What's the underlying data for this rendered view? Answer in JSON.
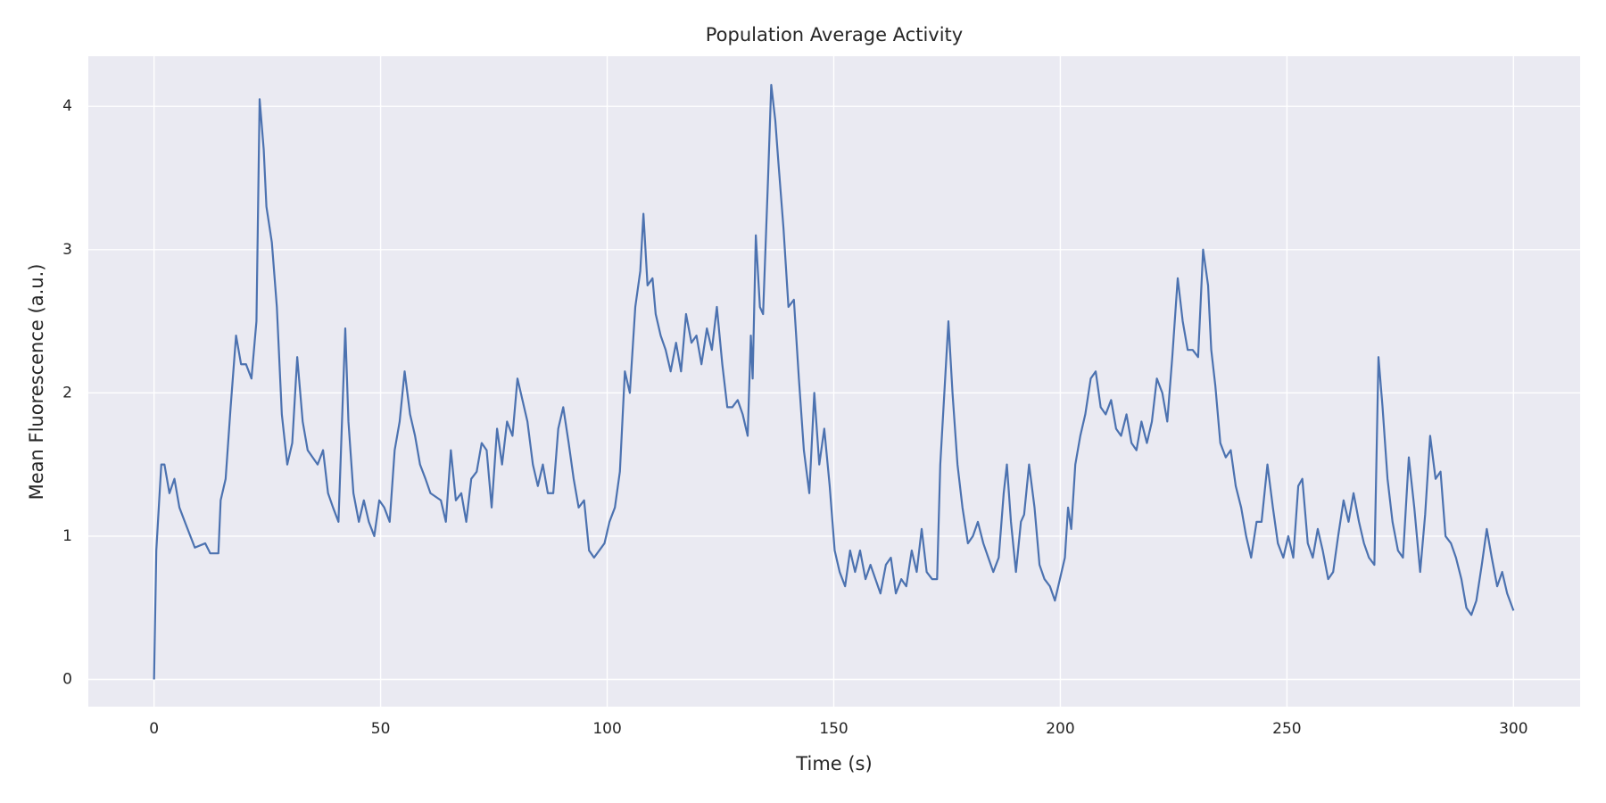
{
  "chart_data": {
    "type": "line",
    "title": "Population Average Activity",
    "x_label": "Time (s)",
    "y_label": "Mean Fluorescence (a.u.)",
    "x": [
      0,
      0.5,
      1.6,
      2.3,
      3.4,
      4.5,
      5.6,
      6.8,
      9,
      11.3,
      12.4,
      14.2,
      14.7,
      15.8,
      16.9,
      18.1,
      19.2,
      20.3,
      21.5,
      22.6,
      23.3,
      24.2,
      24.8,
      26,
      27.1,
      28.2,
      29.4,
      30.5,
      31.6,
      32.8,
      33.9,
      35,
      36.1,
      37.3,
      38.4,
      39.5,
      40.7,
      42.2,
      42.9,
      44,
      45.2,
      46.3,
      47.4,
      48.6,
      49.7,
      50.8,
      52,
      53.1,
      54.2,
      55.3,
      56.5,
      57.6,
      58.7,
      59.9,
      61,
      63.3,
      64.4,
      65.5,
      66.6,
      67.8,
      68.9,
      70,
      71.2,
      72.3,
      73.4,
      74.5,
      75.7,
      76.8,
      77.9,
      79.1,
      80.2,
      81.3,
      82.4,
      83.6,
      84.7,
      85.8,
      86.9,
      88.1,
      89.2,
      90.3,
      91.5,
      92.6,
      93.7,
      94.9,
      96,
      97.1,
      99.4,
      100.5,
      101.7,
      102.8,
      103.9,
      105,
      106.2,
      107.3,
      108,
      108.9,
      110,
      110.7,
      111.8,
      112.9,
      114,
      115.2,
      116.3,
      117.4,
      118.6,
      119.7,
      120.8,
      122,
      123.1,
      124.2,
      125.4,
      126.5,
      127.6,
      128.8,
      129.9,
      131,
      131.7,
      132.1,
      132.8,
      133.7,
      134.4,
      135.5,
      136.2,
      137.1,
      137.8,
      138.9,
      140,
      141.2,
      142.3,
      143.4,
      144.6,
      145.7,
      146.8,
      147.9,
      149.1,
      150.2,
      151.3,
      152.5,
      153.6,
      154.7,
      155.8,
      157,
      158.1,
      159.2,
      160.3,
      161.5,
      162.6,
      163.7,
      164.9,
      166,
      167.2,
      168.3,
      169.4,
      170.5,
      171.7,
      172.8,
      173.5,
      174.4,
      175.3,
      176.2,
      177.3,
      178.4,
      179.6,
      180.7,
      181.8,
      183,
      184.1,
      185.2,
      186.4,
      187.5,
      188.2,
      189.1,
      190.2,
      191.3,
      192,
      193.1,
      194.3,
      195.4,
      196.5,
      197.7,
      198.8,
      199.9,
      201,
      201.7,
      202.4,
      203.3,
      204.4,
      205.5,
      206.7,
      207.8,
      208.9,
      210,
      211.2,
      212.3,
      213.4,
      214.6,
      215.7,
      216.8,
      217.9,
      219.1,
      220.2,
      221.3,
      222.5,
      223.6,
      224.7,
      225.9,
      227,
      228.1,
      229.2,
      230.4,
      231.5,
      232.6,
      233.3,
      234.2,
      235.3,
      236.5,
      237.6,
      238.7,
      239.9,
      241,
      242.1,
      243.3,
      244.4,
      245.7,
      246.9,
      248,
      249.2,
      250.3,
      251.4,
      252.5,
      253.4,
      254.6,
      255.7,
      256.8,
      257.9,
      259.1,
      260.2,
      261.3,
      262.5,
      263.6,
      264.7,
      265.9,
      267,
      268.1,
      269.3,
      270.2,
      271.1,
      272.2,
      273.3,
      274.5,
      275.6,
      276.9,
      278.1,
      279.4,
      280.5,
      281.6,
      282.8,
      283.9,
      285,
      286.2,
      287.3,
      288.5,
      289.6,
      290.7,
      291.8,
      293,
      294.1,
      295.2,
      296.4,
      297.5,
      298.6,
      300
    ],
    "values": [
      0,
      0.9,
      1.5,
      1.5,
      1.3,
      1.4,
      1.2,
      1.1,
      0.92,
      0.95,
      0.88,
      0.88,
      1.25,
      1.4,
      1.9,
      2.4,
      2.2,
      2.2,
      2.1,
      2.5,
      4.05,
      3.7,
      3.3,
      3.05,
      2.6,
      1.85,
      1.5,
      1.65,
      2.25,
      1.8,
      1.6,
      1.55,
      1.5,
      1.6,
      1.3,
      1.2,
      1.1,
      2.45,
      1.8,
      1.3,
      1.1,
      1.25,
      1.1,
      1.0,
      1.25,
      1.2,
      1.1,
      1.6,
      1.8,
      2.15,
      1.85,
      1.7,
      1.5,
      1.4,
      1.3,
      1.25,
      1.1,
      1.6,
      1.25,
      1.3,
      1.1,
      1.4,
      1.45,
      1.65,
      1.6,
      1.2,
      1.75,
      1.5,
      1.8,
      1.7,
      2.1,
      1.95,
      1.8,
      1.5,
      1.35,
      1.5,
      1.3,
      1.3,
      1.75,
      1.9,
      1.65,
      1.4,
      1.2,
      1.25,
      0.9,
      0.85,
      0.95,
      1.1,
      1.2,
      1.45,
      2.15,
      2.0,
      2.6,
      2.85,
      3.25,
      2.75,
      2.8,
      2.55,
      2.4,
      2.3,
      2.15,
      2.35,
      2.15,
      2.55,
      2.35,
      2.4,
      2.2,
      2.45,
      2.3,
      2.6,
      2.2,
      1.9,
      1.9,
      1.95,
      1.85,
      1.7,
      2.4,
      2.1,
      3.1,
      2.6,
      2.55,
      3.5,
      4.15,
      3.9,
      3.6,
      3.15,
      2.6,
      2.65,
      2.1,
      1.6,
      1.3,
      2.0,
      1.5,
      1.75,
      1.35,
      0.9,
      0.75,
      0.65,
      0.9,
      0.75,
      0.9,
      0.7,
      0.8,
      0.7,
      0.6,
      0.8,
      0.85,
      0.6,
      0.7,
      0.65,
      0.9,
      0.75,
      1.05,
      0.75,
      0.7,
      0.7,
      1.5,
      2.0,
      2.5,
      2.0,
      1.5,
      1.2,
      0.95,
      1.0,
      1.1,
      0.95,
      0.85,
      0.75,
      0.85,
      1.3,
      1.5,
      1.1,
      0.75,
      1.1,
      1.15,
      1.5,
      1.2,
      0.8,
      0.7,
      0.65,
      0.55,
      0.7,
      0.85,
      1.2,
      1.05,
      1.5,
      1.7,
      1.85,
      2.1,
      2.15,
      1.9,
      1.85,
      1.95,
      1.75,
      1.7,
      1.85,
      1.65,
      1.6,
      1.8,
      1.65,
      1.8,
      2.1,
      2.0,
      1.8,
      2.25,
      2.8,
      2.5,
      2.3,
      2.3,
      2.25,
      3.0,
      2.75,
      2.3,
      2.05,
      1.65,
      1.55,
      1.6,
      1.35,
      1.2,
      1.0,
      0.85,
      1.1,
      1.1,
      1.5,
      1.2,
      0.95,
      0.85,
      1.0,
      0.85,
      1.35,
      1.4,
      0.95,
      0.85,
      1.05,
      0.9,
      0.7,
      0.75,
      1.0,
      1.25,
      1.1,
      1.3,
      1.1,
      0.95,
      0.85,
      0.8,
      2.25,
      1.9,
      1.4,
      1.1,
      0.9,
      0.85,
      1.55,
      1.2,
      0.75,
      1.15,
      1.7,
      1.4,
      1.45,
      1.0,
      0.95,
      0.85,
      0.7,
      0.5,
      0.45,
      0.55,
      0.8,
      1.05,
      0.85,
      0.65,
      0.75,
      0.6,
      0.48
    ],
    "color": "#4c72b0",
    "background": "#eaeaf2",
    "grid": true,
    "xlim": [
      -14.5,
      314.7
    ],
    "ylim": [
      -0.19,
      4.35
    ],
    "xticks": [
      0,
      50,
      100,
      150,
      200,
      250,
      300
    ],
    "yticks": [
      0,
      1,
      2,
      3,
      4
    ]
  }
}
